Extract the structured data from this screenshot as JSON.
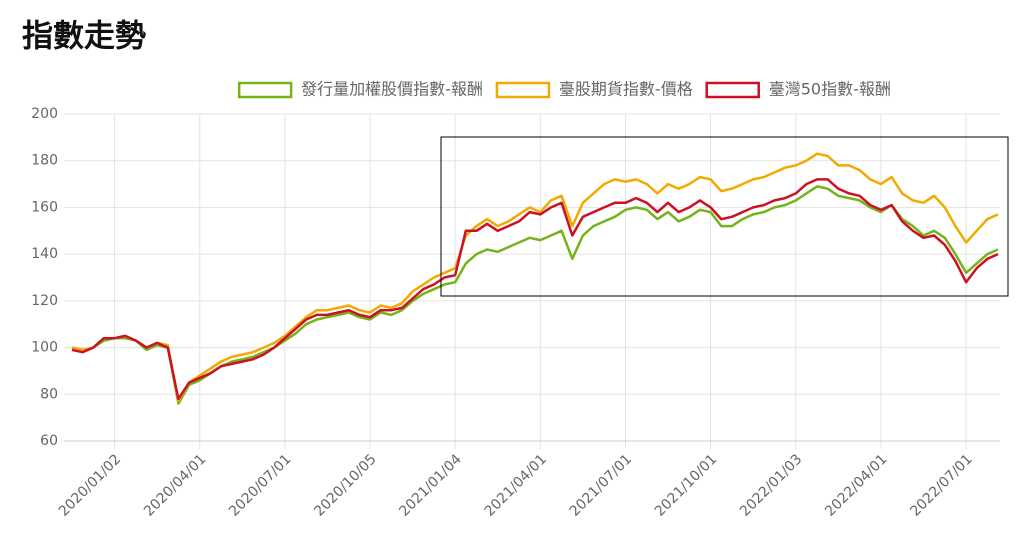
{
  "chart_data": {
    "type": "line",
    "title": "指數走勢",
    "categories": [
      null,
      null,
      null,
      null,
      "2020/01/02",
      null,
      null,
      null,
      null,
      null,
      null,
      null,
      "2020/04/01",
      null,
      null,
      null,
      null,
      null,
      null,
      null,
      "2020/07/01",
      null,
      null,
      null,
      null,
      null,
      null,
      null,
      "2020/10/05",
      null,
      null,
      null,
      null,
      null,
      null,
      null,
      "2021/01/04",
      null,
      null,
      null,
      null,
      null,
      null,
      null,
      "2021/04/01",
      null,
      null,
      null,
      null,
      null,
      null,
      null,
      "2021/07/01",
      null,
      null,
      null,
      null,
      null,
      null,
      null,
      "2021/10/01",
      null,
      null,
      null,
      null,
      null,
      null,
      null,
      "2022/01/03",
      null,
      null,
      null,
      null,
      null,
      null,
      null,
      "2022/04/01",
      null,
      null,
      null,
      null,
      null,
      null,
      null,
      "2022/07/01",
      null,
      null,
      null
    ],
    "series": [
      {
        "name": "發行量加權股價指數-報酬",
        "color": "#76b31b",
        "values": [
          100,
          99,
          100,
          103,
          104,
          104,
          103,
          99,
          101,
          100,
          76,
          84,
          86,
          89,
          92,
          94,
          95,
          96,
          98,
          100,
          103,
          106,
          110,
          112,
          113,
          114,
          115,
          113,
          112,
          115,
          114,
          116,
          120,
          123,
          125,
          127,
          128,
          136,
          140,
          142,
          141,
          143,
          145,
          147,
          146,
          148,
          150,
          138,
          148,
          152,
          154,
          156,
          159,
          160,
          159,
          155,
          158,
          154,
          156,
          159,
          158,
          152,
          152,
          155,
          157,
          158,
          160,
          161,
          163,
          166,
          169,
          168,
          165,
          164,
          163,
          160,
          158,
          161,
          155,
          152,
          148,
          150,
          147,
          140,
          132,
          136,
          140,
          142
        ]
      },
      {
        "name": "臺股期貨指數-價格",
        "color": "#f2a900",
        "values": [
          100,
          99,
          100,
          104,
          104,
          105,
          103,
          100,
          102,
          101,
          77,
          85,
          88,
          91,
          94,
          96,
          97,
          98,
          100,
          102,
          105,
          109,
          113,
          116,
          116,
          117,
          118,
          116,
          115,
          118,
          117,
          119,
          124,
          127,
          130,
          132,
          134,
          148,
          152,
          155,
          152,
          154,
          157,
          160,
          158,
          163,
          165,
          152,
          162,
          166,
          170,
          172,
          171,
          172,
          170,
          166,
          170,
          168,
          170,
          173,
          172,
          167,
          168,
          170,
          172,
          173,
          175,
          177,
          178,
          180,
          183,
          182,
          178,
          178,
          176,
          172,
          170,
          173,
          166,
          163,
          162,
          165,
          160,
          152,
          145,
          150,
          155,
          157
        ]
      },
      {
        "name": "臺灣50指數-報酬",
        "color": "#cc1126",
        "values": [
          99,
          98,
          100,
          104,
          104,
          105,
          103,
          100,
          102,
          100,
          78,
          85,
          87,
          89,
          92,
          93,
          94,
          95,
          97,
          100,
          104,
          108,
          112,
          114,
          114,
          115,
          116,
          114,
          113,
          116,
          116,
          117,
          121,
          125,
          127,
          130,
          131,
          150,
          150,
          153,
          150,
          152,
          154,
          158,
          157,
          160,
          162,
          148,
          156,
          158,
          160,
          162,
          162,
          164,
          162,
          158,
          162,
          158,
          160,
          163,
          160,
          155,
          156,
          158,
          160,
          161,
          163,
          164,
          166,
          170,
          172,
          172,
          168,
          166,
          165,
          161,
          159,
          161,
          154,
          150,
          147,
          148,
          144,
          137,
          128,
          134,
          138,
          140
        ]
      }
    ],
    "ylim": [
      60,
      200
    ],
    "yticks": [
      60,
      80,
      100,
      120,
      140,
      160,
      180,
      200
    ],
    "grid": true,
    "legend": "top"
  }
}
